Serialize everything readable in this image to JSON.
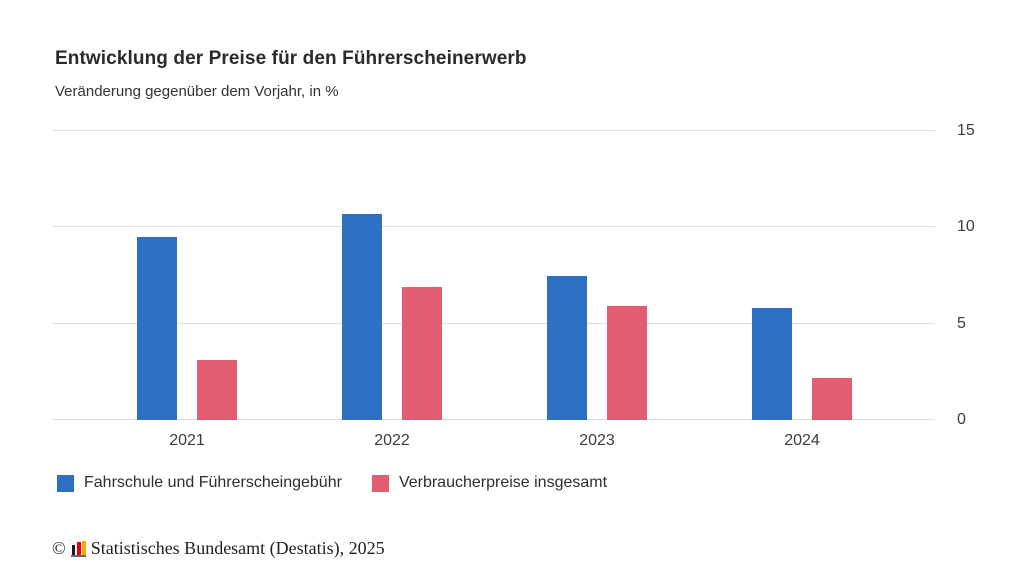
{
  "chart_data": {
    "type": "bar",
    "title": "Entwicklung der Preise für den Führerscheinerwerb",
    "subtitle": "Veränderung gegenüber dem Vorjahr, in %",
    "categories": [
      "2021",
      "2022",
      "2023",
      "2024"
    ],
    "series": [
      {
        "name": "Fahrschule und Führerscheingebühr",
        "color": "#2d70c4",
        "values": [
          9.5,
          10.7,
          7.5,
          5.8
        ]
      },
      {
        "name": "Verbraucherpreise insgesamt",
        "color": "#e25c72",
        "values": [
          3.1,
          6.9,
          5.9,
          2.2
        ]
      }
    ],
    "xlabel": "",
    "ylabel": "",
    "ylim": [
      0,
      15
    ],
    "yticks": [
      0,
      5,
      10,
      15
    ],
    "y_axis_side": "right",
    "grid": true,
    "gridline_color": "#dddddd",
    "legend_position": "bottom"
  },
  "footer": {
    "copyright_symbol": "©",
    "source": "Statistisches Bundesamt (Destatis), 2025",
    "logo": {
      "name": "destatis-bar-chart-logo",
      "bar_colors": [
        "#1a1a1a",
        "#e3000f",
        "#f5a800"
      ],
      "base_color": "#666666"
    }
  }
}
